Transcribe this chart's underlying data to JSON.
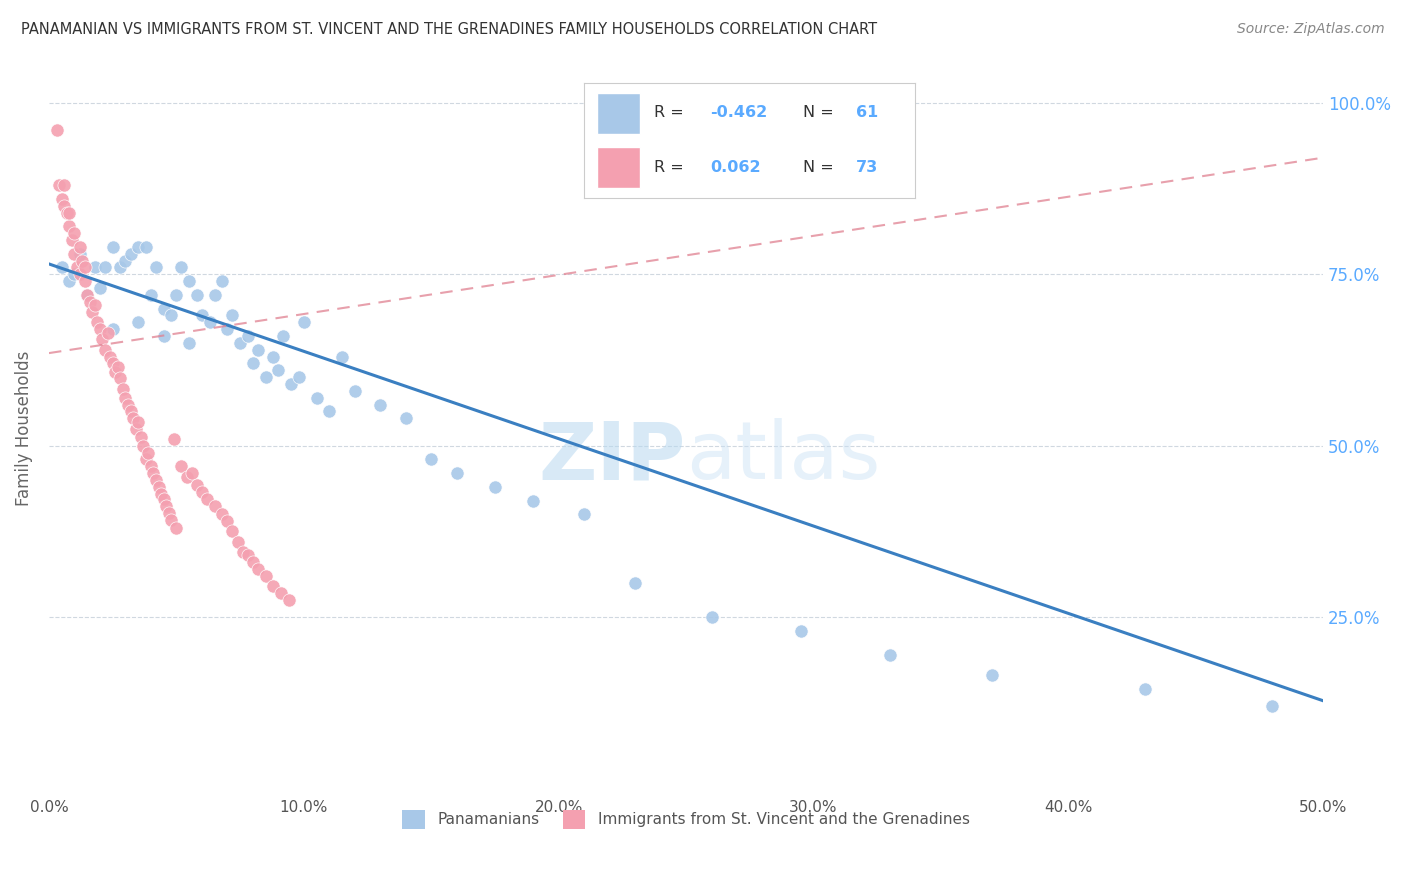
{
  "title": "PANAMANIAN VS IMMIGRANTS FROM ST. VINCENT AND THE GRENADINES FAMILY HOUSEHOLDS CORRELATION CHART",
  "source": "Source: ZipAtlas.com",
  "ylabel": "Family Households",
  "legend_blue_label": "Panamanians",
  "legend_pink_label": "Immigrants from St. Vincent and the Grenadines",
  "watermark": "ZIPatlas",
  "blue_color": "#a8c8e8",
  "blue_line_color": "#3a7fc1",
  "pink_color": "#f4a0b0",
  "pink_line_color": "#e08090",
  "background_color": "#ffffff",
  "grid_color": "#d0d8e0",
  "title_color": "#333333",
  "right_axis_color": "#5aaaff",
  "blue_scatter_x": [
    0.005,
    0.008,
    0.01,
    0.012,
    0.015,
    0.018,
    0.02,
    0.022,
    0.025,
    0.028,
    0.03,
    0.032,
    0.035,
    0.038,
    0.04,
    0.042,
    0.045,
    0.048,
    0.05,
    0.052,
    0.055,
    0.058,
    0.06,
    0.063,
    0.065,
    0.068,
    0.07,
    0.072,
    0.075,
    0.078,
    0.08,
    0.082,
    0.085,
    0.088,
    0.09,
    0.092,
    0.095,
    0.098,
    0.1,
    0.105,
    0.11,
    0.115,
    0.12,
    0.13,
    0.14,
    0.15,
    0.16,
    0.175,
    0.19,
    0.21,
    0.23,
    0.26,
    0.295,
    0.33,
    0.37,
    0.43,
    0.48,
    0.025,
    0.035,
    0.045,
    0.055
  ],
  "blue_scatter_y": [
    0.76,
    0.74,
    0.75,
    0.78,
    0.72,
    0.76,
    0.73,
    0.76,
    0.79,
    0.76,
    0.77,
    0.78,
    0.79,
    0.79,
    0.72,
    0.76,
    0.7,
    0.69,
    0.72,
    0.76,
    0.74,
    0.72,
    0.69,
    0.68,
    0.72,
    0.74,
    0.67,
    0.69,
    0.65,
    0.66,
    0.62,
    0.64,
    0.6,
    0.63,
    0.61,
    0.66,
    0.59,
    0.6,
    0.68,
    0.57,
    0.55,
    0.63,
    0.58,
    0.56,
    0.54,
    0.48,
    0.46,
    0.44,
    0.42,
    0.4,
    0.3,
    0.25,
    0.23,
    0.195,
    0.165,
    0.145,
    0.12,
    0.67,
    0.68,
    0.66,
    0.65
  ],
  "pink_scatter_x": [
    0.003,
    0.004,
    0.005,
    0.006,
    0.007,
    0.008,
    0.009,
    0.01,
    0.011,
    0.012,
    0.013,
    0.014,
    0.015,
    0.016,
    0.017,
    0.018,
    0.019,
    0.02,
    0.021,
    0.022,
    0.023,
    0.024,
    0.025,
    0.026,
    0.027,
    0.028,
    0.029,
    0.03,
    0.031,
    0.032,
    0.033,
    0.034,
    0.035,
    0.036,
    0.037,
    0.038,
    0.039,
    0.04,
    0.041,
    0.042,
    0.043,
    0.044,
    0.045,
    0.046,
    0.047,
    0.048,
    0.049,
    0.05,
    0.052,
    0.054,
    0.056,
    0.058,
    0.06,
    0.062,
    0.065,
    0.068,
    0.07,
    0.072,
    0.074,
    0.076,
    0.078,
    0.08,
    0.082,
    0.085,
    0.088,
    0.091,
    0.094,
    0.006,
    0.008,
    0.01,
    0.012,
    0.014
  ],
  "pink_scatter_y": [
    0.96,
    0.88,
    0.86,
    0.85,
    0.84,
    0.82,
    0.8,
    0.78,
    0.76,
    0.75,
    0.77,
    0.74,
    0.72,
    0.71,
    0.695,
    0.705,
    0.68,
    0.67,
    0.655,
    0.64,
    0.665,
    0.63,
    0.62,
    0.608,
    0.615,
    0.598,
    0.582,
    0.57,
    0.56,
    0.55,
    0.54,
    0.525,
    0.535,
    0.512,
    0.5,
    0.48,
    0.49,
    0.47,
    0.46,
    0.45,
    0.44,
    0.43,
    0.422,
    0.412,
    0.402,
    0.392,
    0.51,
    0.38,
    0.47,
    0.455,
    0.46,
    0.442,
    0.432,
    0.422,
    0.412,
    0.4,
    0.39,
    0.375,
    0.36,
    0.345,
    0.34,
    0.33,
    0.32,
    0.31,
    0.295,
    0.285,
    0.275,
    0.88,
    0.84,
    0.81,
    0.79,
    0.76
  ],
  "xlim": [
    0.0,
    0.5
  ],
  "ylim": [
    0.0,
    1.05
  ],
  "blue_trend_x": [
    0.0,
    0.5
  ],
  "blue_trend_y": [
    0.765,
    0.128
  ],
  "pink_trend_x": [
    0.0,
    0.5
  ],
  "pink_trend_y": [
    0.635,
    0.92
  ],
  "xtick_positions": [
    0.0,
    0.1,
    0.2,
    0.3,
    0.4,
    0.5
  ],
  "xtick_labels": [
    "0.0%",
    "10.0%",
    "20.0%",
    "30.0%",
    "40.0%",
    "50.0%"
  ],
  "ytick_positions": [
    0.25,
    0.5,
    0.75,
    1.0
  ],
  "ytick_labels": [
    "25.0%",
    "50.0%",
    "75.0%",
    "100.0%"
  ]
}
